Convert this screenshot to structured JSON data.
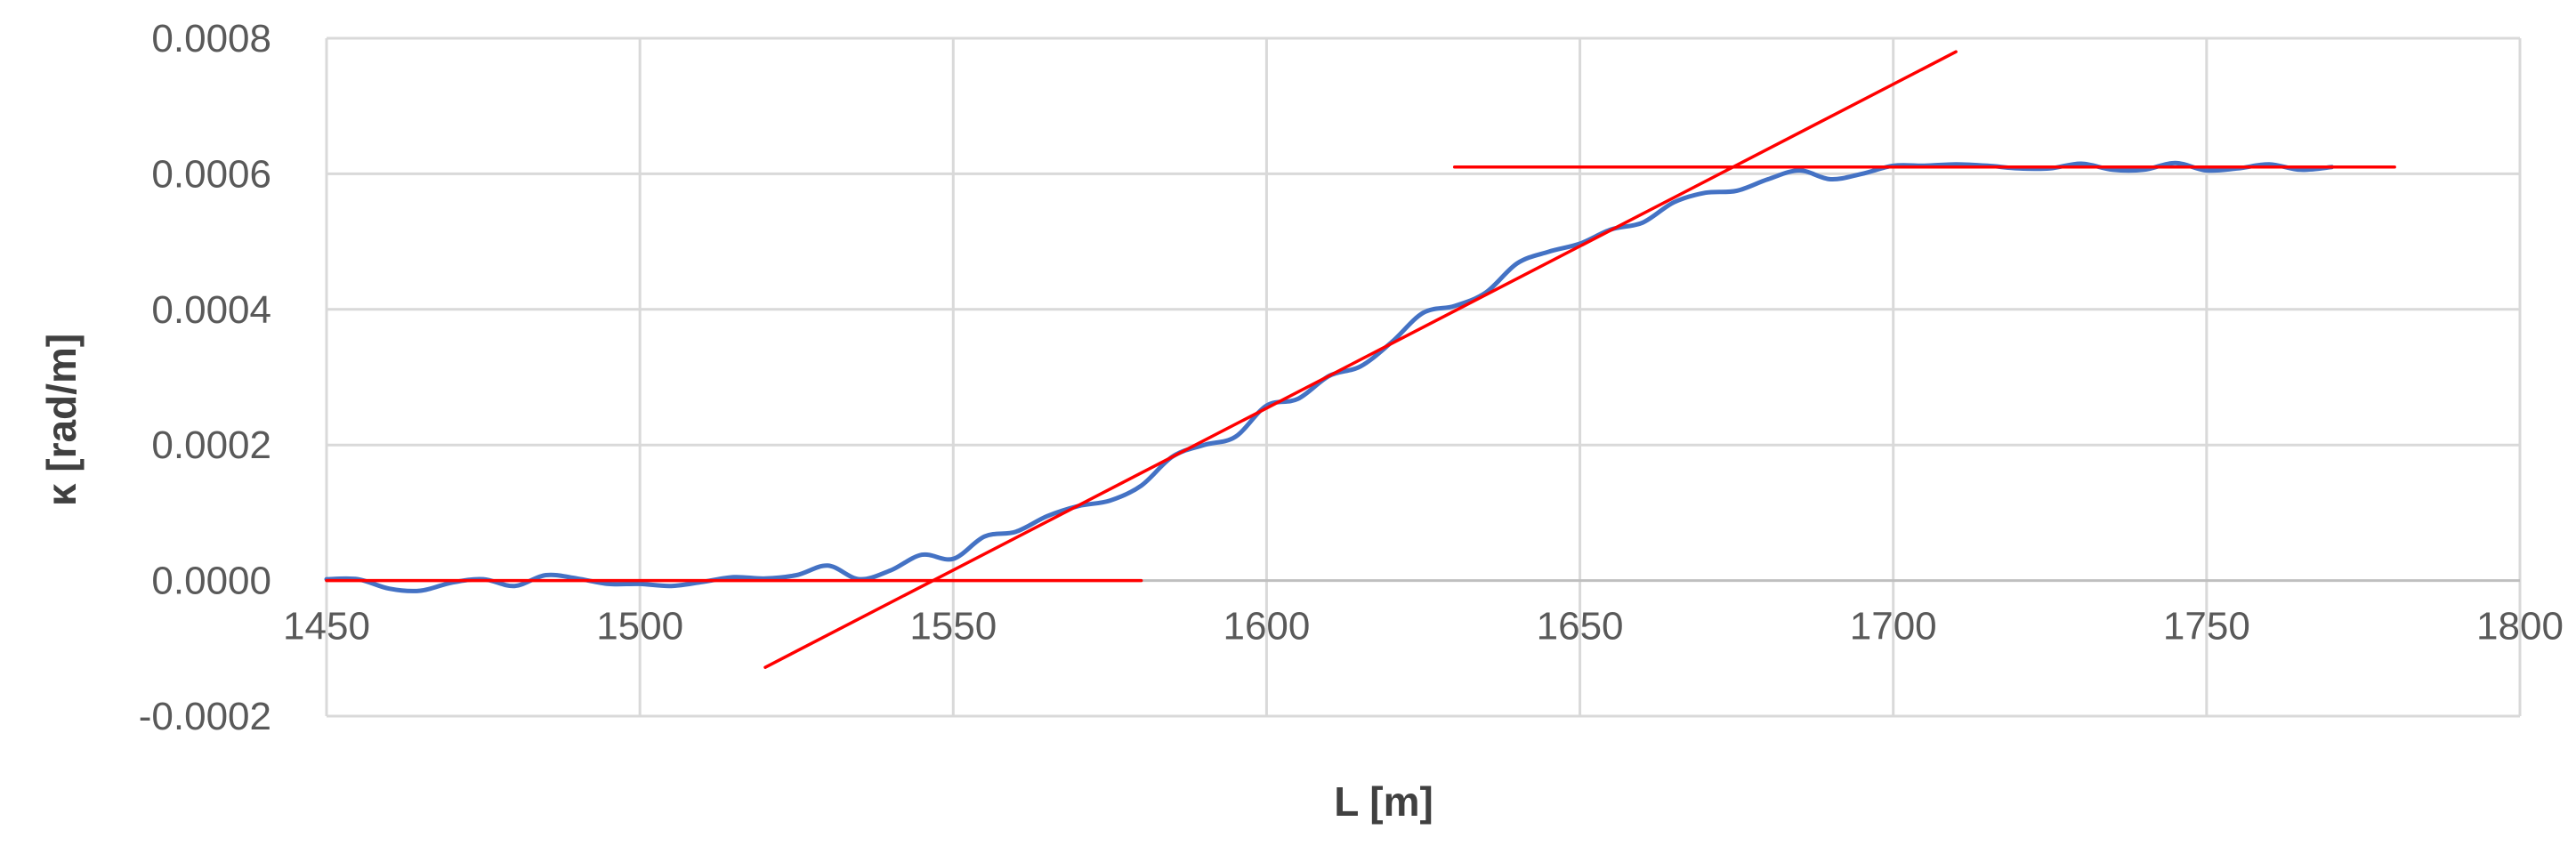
{
  "chart_data": {
    "type": "line",
    "title": "",
    "xlabel": "L [m]",
    "ylabel": "κ [rad/m]",
    "xlim": [
      1450,
      1800
    ],
    "ylim": [
      -0.0002,
      0.0008
    ],
    "x_ticks": [
      1450,
      1500,
      1550,
      1600,
      1650,
      1700,
      1750,
      1800
    ],
    "y_ticks": [
      -0.0002,
      0.0,
      0.0002,
      0.0004,
      0.0006,
      0.0008
    ],
    "x_tick_labels": [
      "1450",
      "1500",
      "1550",
      "1600",
      "1650",
      "1700",
      "1750",
      "1800"
    ],
    "y_tick_labels": [
      "-0.0002",
      "0.0000",
      "0.0002",
      "0.0004",
      "0.0006",
      "0.0008"
    ],
    "grid": true,
    "legend": "none",
    "series": [
      {
        "color": "#4472c4",
        "points": [
          [
            1450,
            2e-06
          ],
          [
            1455,
            2e-06
          ],
          [
            1460,
            -1.2e-05
          ],
          [
            1465,
            -1.5e-05
          ],
          [
            1470,
            -3e-06
          ],
          [
            1475,
            2e-06
          ],
          [
            1480,
            -8e-06
          ],
          [
            1485,
            8e-06
          ],
          [
            1490,
            3e-06
          ],
          [
            1495,
            -5e-06
          ],
          [
            1500,
            -5e-06
          ],
          [
            1505,
            -8e-06
          ],
          [
            1510,
            -2e-06
          ],
          [
            1515,
            5e-06
          ],
          [
            1520,
            3e-06
          ],
          [
            1525,
            8e-06
          ],
          [
            1530,
            2.2e-05
          ],
          [
            1535,
            2e-06
          ],
          [
            1540,
            1.5e-05
          ],
          [
            1545,
            3.8e-05
          ],
          [
            1550,
            3.2e-05
          ],
          [
            1555,
            6.5e-05
          ],
          [
            1560,
            7.2e-05
          ],
          [
            1565,
            9.5e-05
          ],
          [
            1570,
            0.00011
          ],
          [
            1575,
            0.000118
          ],
          [
            1580,
            0.00014
          ],
          [
            1585,
            0.000183
          ],
          [
            1590,
            0.0002
          ],
          [
            1595,
            0.000212
          ],
          [
            1600,
            0.000258
          ],
          [
            1605,
            0.000268
          ],
          [
            1610,
            0.000302
          ],
          [
            1615,
            0.000316
          ],
          [
            1620,
            0.000352
          ],
          [
            1625,
            0.000395
          ],
          [
            1630,
            0.000405
          ],
          [
            1635,
            0.000425
          ],
          [
            1640,
            0.000468
          ],
          [
            1645,
            0.000485
          ],
          [
            1650,
            0.000497
          ],
          [
            1655,
            0.000518
          ],
          [
            1660,
            0.000528
          ],
          [
            1665,
            0.000558
          ],
          [
            1670,
            0.000572
          ],
          [
            1675,
            0.000575
          ],
          [
            1680,
            0.000592
          ],
          [
            1685,
            0.000605
          ],
          [
            1690,
            0.000592
          ],
          [
            1695,
            0.0006
          ],
          [
            1700,
            0.000612
          ],
          [
            1705,
            0.000612
          ],
          [
            1710,
            0.000614
          ],
          [
            1715,
            0.000612
          ],
          [
            1720,
            0.000608
          ],
          [
            1725,
            0.000608
          ],
          [
            1730,
            0.000615
          ],
          [
            1735,
            0.000606
          ],
          [
            1740,
            0.000606
          ],
          [
            1745,
            0.000616
          ],
          [
            1750,
            0.000605
          ],
          [
            1755,
            0.000608
          ],
          [
            1760,
            0.000614
          ],
          [
            1765,
            0.000606
          ],
          [
            1770,
            0.00061
          ]
        ]
      },
      {
        "color": "#ff0000",
        "points": [
          [
            1450,
            0.0
          ],
          [
            1580,
            0.0
          ]
        ]
      },
      {
        "color": "#ff0000",
        "points": [
          [
            1520,
            -0.000128
          ],
          [
            1710,
            0.00078
          ]
        ]
      },
      {
        "color": "#ff0000",
        "points": [
          [
            1630,
            0.00061
          ],
          [
            1780,
            0.00061
          ]
        ]
      }
    ]
  }
}
